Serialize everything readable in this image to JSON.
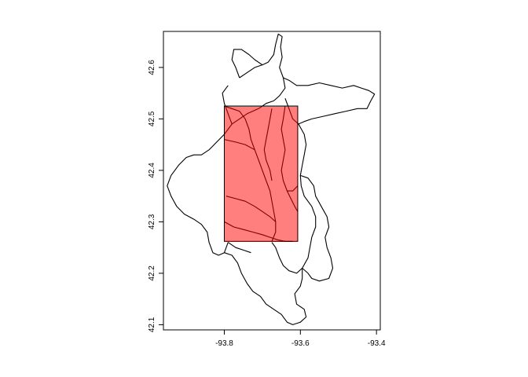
{
  "chart_data": {
    "type": "map",
    "title": "",
    "xlabel": "",
    "ylabel": "",
    "xlim": [
      -93.96,
      -93.39
    ],
    "ylim": [
      42.09,
      42.67
    ],
    "x_ticks": [
      {
        "value": -93.8,
        "label": "-93.8"
      },
      {
        "value": -93.6,
        "label": "-93.6"
      },
      {
        "value": -93.4,
        "label": "-93.4"
      }
    ],
    "y_ticks": [
      {
        "value": 42.1,
        "label": "42.1"
      },
      {
        "value": 42.2,
        "label": "42.2"
      },
      {
        "value": 42.3,
        "label": "42.3"
      },
      {
        "value": 42.4,
        "label": "42.4"
      },
      {
        "value": 42.5,
        "label": "42.5"
      },
      {
        "value": 42.6,
        "label": "42.6"
      }
    ],
    "highlight_box": {
      "xmin": -93.8,
      "xmax": -93.607,
      "ymin": 42.262,
      "ymax": 42.525,
      "fill": "#ff0000",
      "opacity": 0.5
    },
    "colors": {
      "outline": "#000000",
      "highlight": "#ff0000"
    },
    "watersheds": [
      [
        [
          -93.76,
          42.58
        ],
        [
          -93.74,
          42.59
        ],
        [
          -93.72,
          42.6
        ],
        [
          -93.7,
          42.605
        ],
        [
          -93.685,
          42.61
        ],
        [
          -93.67,
          42.625
        ],
        [
          -93.665,
          42.645
        ],
        [
          -93.658,
          42.665
        ],
        [
          -93.648,
          42.66
        ],
        [
          -93.652,
          42.64
        ],
        [
          -93.648,
          42.62
        ],
        [
          -93.655,
          42.6
        ],
        [
          -93.645,
          42.58
        ],
        [
          -93.64,
          42.56
        ],
        [
          -93.655,
          42.545
        ],
        [
          -93.67,
          42.535
        ],
        [
          -93.69,
          42.53
        ],
        [
          -93.71,
          42.52
        ],
        [
          -93.74,
          42.51
        ],
        [
          -93.76,
          42.5
        ],
        [
          -93.78,
          42.49
        ],
        [
          -93.79,
          42.51
        ],
        [
          -93.8,
          42.53
        ],
        [
          -93.805,
          42.55
        ],
        [
          -93.79,
          42.565
        ]
      ],
      [
        [
          -93.76,
          42.58
        ],
        [
          -93.77,
          42.6
        ],
        [
          -93.78,
          42.615
        ],
        [
          -93.775,
          42.635
        ],
        [
          -93.755,
          42.635
        ],
        [
          -93.735,
          42.625
        ],
        [
          -93.72,
          42.615
        ],
        [
          -93.7,
          42.605
        ]
      ],
      [
        [
          -93.645,
          42.58
        ],
        [
          -93.63,
          42.575
        ],
        [
          -93.61,
          42.565
        ],
        [
          -93.58,
          42.565
        ],
        [
          -93.55,
          42.57
        ],
        [
          -93.52,
          42.565
        ],
        [
          -93.49,
          42.56
        ],
        [
          -93.46,
          42.565
        ],
        [
          -93.44,
          42.56
        ],
        [
          -93.42,
          42.555
        ],
        [
          -93.405,
          42.548
        ],
        [
          -93.415,
          42.535
        ],
        [
          -93.425,
          42.52
        ],
        [
          -93.45,
          42.52
        ],
        [
          -93.48,
          42.515
        ],
        [
          -93.51,
          42.51
        ],
        [
          -93.54,
          42.505
        ],
        [
          -93.57,
          42.5
        ],
        [
          -93.59,
          42.495
        ],
        [
          -93.605,
          42.49
        ],
        [
          -93.62,
          42.5
        ],
        [
          -93.63,
          42.52
        ],
        [
          -93.64,
          42.54
        ]
      ],
      [
        [
          -93.605,
          42.49
        ],
        [
          -93.59,
          42.47
        ],
        [
          -93.585,
          42.45
        ],
        [
          -93.59,
          42.43
        ],
        [
          -93.595,
          42.41
        ],
        [
          -93.6,
          42.39
        ],
        [
          -93.598,
          42.37
        ],
        [
          -93.59,
          42.35
        ],
        [
          -93.57,
          42.33
        ],
        [
          -93.56,
          42.31
        ],
        [
          -93.56,
          42.29
        ],
        [
          -93.57,
          42.27
        ],
        [
          -93.575,
          42.25
        ],
        [
          -93.58,
          42.23
        ],
        [
          -93.595,
          42.21
        ],
        [
          -93.61,
          42.2
        ],
        [
          -93.63,
          42.205
        ],
        [
          -93.645,
          42.215
        ],
        [
          -93.655,
          42.23
        ],
        [
          -93.665,
          42.25
        ],
        [
          -93.675,
          42.26
        ]
      ],
      [
        [
          -93.78,
          42.49
        ],
        [
          -93.8,
          42.47
        ],
        [
          -93.82,
          42.455
        ],
        [
          -93.84,
          42.44
        ],
        [
          -93.86,
          42.43
        ],
        [
          -93.88,
          42.43
        ],
        [
          -93.9,
          42.425
        ],
        [
          -93.92,
          42.41
        ],
        [
          -93.94,
          42.39
        ],
        [
          -93.95,
          42.37
        ],
        [
          -93.94,
          42.35
        ],
        [
          -93.925,
          42.33
        ],
        [
          -93.905,
          42.315
        ],
        [
          -93.88,
          42.305
        ],
        [
          -93.86,
          42.295
        ],
        [
          -93.845,
          42.28
        ],
        [
          -93.84,
          42.26
        ],
        [
          -93.83,
          42.24
        ],
        [
          -93.815,
          42.235
        ],
        [
          -93.8,
          42.24
        ],
        [
          -93.79,
          42.26
        ]
      ],
      [
        [
          -93.8,
          42.24
        ],
        [
          -93.78,
          42.235
        ],
        [
          -93.765,
          42.22
        ],
        [
          -93.755,
          42.2
        ],
        [
          -93.74,
          42.18
        ],
        [
          -93.725,
          42.165
        ],
        [
          -93.705,
          42.155
        ],
        [
          -93.69,
          42.14
        ],
        [
          -93.67,
          42.13
        ],
        [
          -93.65,
          42.12
        ],
        [
          -93.635,
          42.105
        ],
        [
          -93.62,
          42.1
        ],
        [
          -93.6,
          42.105
        ],
        [
          -93.585,
          42.115
        ],
        [
          -93.59,
          42.13
        ],
        [
          -93.61,
          42.14
        ],
        [
          -93.615,
          42.16
        ],
        [
          -93.6,
          42.175
        ],
        [
          -93.595,
          42.19
        ],
        [
          -93.595,
          42.21
        ]
      ],
      [
        [
          -93.6,
          42.39
        ],
        [
          -93.58,
          42.385
        ],
        [
          -93.565,
          42.37
        ],
        [
          -93.56,
          42.35
        ],
        [
          -93.545,
          42.33
        ],
        [
          -93.53,
          42.31
        ],
        [
          -93.525,
          42.29
        ],
        [
          -93.535,
          42.27
        ],
        [
          -93.53,
          42.25
        ],
        [
          -93.52,
          42.23
        ],
        [
          -93.515,
          42.21
        ],
        [
          -93.525,
          42.19
        ],
        [
          -93.55,
          42.185
        ],
        [
          -93.57,
          42.19
        ],
        [
          -93.58,
          42.2
        ],
        [
          -93.595,
          42.21
        ]
      ],
      [
        [
          -93.8,
          42.525
        ],
        [
          -93.78,
          42.52
        ],
        [
          -93.76,
          42.515
        ],
        [
          -93.745,
          42.5
        ],
        [
          -93.735,
          42.48
        ],
        [
          -93.73,
          42.46
        ],
        [
          -93.72,
          42.44
        ],
        [
          -93.71,
          42.42
        ],
        [
          -93.7,
          42.4
        ],
        [
          -93.69,
          42.38
        ],
        [
          -93.68,
          42.36
        ],
        [
          -93.675,
          42.34
        ],
        [
          -93.67,
          42.32
        ],
        [
          -93.665,
          42.3
        ],
        [
          -93.665,
          42.28
        ],
        [
          -93.675,
          42.262
        ]
      ],
      [
        [
          -93.8,
          42.46
        ],
        [
          -93.77,
          42.455
        ],
        [
          -93.745,
          42.45
        ],
        [
          -93.72,
          42.44
        ]
      ],
      [
        [
          -93.795,
          42.35
        ],
        [
          -93.77,
          42.345
        ],
        [
          -93.745,
          42.34
        ],
        [
          -93.72,
          42.33
        ],
        [
          -93.7,
          42.32
        ],
        [
          -93.68,
          42.31
        ],
        [
          -93.665,
          42.3
        ]
      ],
      [
        [
          -93.675,
          42.52
        ],
        [
          -93.68,
          42.5
        ],
        [
          -93.685,
          42.48
        ],
        [
          -93.69,
          42.46
        ],
        [
          -93.695,
          42.44
        ],
        [
          -93.69,
          42.42
        ],
        [
          -93.68,
          42.4
        ],
        [
          -93.675,
          42.38
        ]
      ],
      [
        [
          -93.64,
          42.525
        ],
        [
          -93.645,
          42.5
        ],
        [
          -93.65,
          42.48
        ],
        [
          -93.645,
          42.46
        ],
        [
          -93.64,
          42.44
        ],
        [
          -93.645,
          42.42
        ],
        [
          -93.65,
          42.4
        ],
        [
          -93.645,
          42.38
        ],
        [
          -93.635,
          42.36
        ],
        [
          -93.625,
          42.345
        ],
        [
          -93.615,
          42.33
        ],
        [
          -93.607,
          42.32
        ]
      ],
      [
        [
          -93.607,
          42.37
        ],
        [
          -93.62,
          42.36
        ],
        [
          -93.635,
          42.36
        ]
      ],
      [
        [
          -93.8,
          42.3
        ],
        [
          -93.775,
          42.29
        ],
        [
          -93.75,
          42.285
        ],
        [
          -93.725,
          42.28
        ],
        [
          -93.7,
          42.275
        ],
        [
          -93.68,
          42.27
        ],
        [
          -93.66,
          42.265
        ],
        [
          -93.64,
          42.262
        ],
        [
          -93.62,
          42.262
        ]
      ],
      [
        [
          -93.79,
          42.26
        ],
        [
          -93.77,
          42.25
        ],
        [
          -93.75,
          42.245
        ],
        [
          -93.73,
          42.24
        ]
      ]
    ]
  }
}
